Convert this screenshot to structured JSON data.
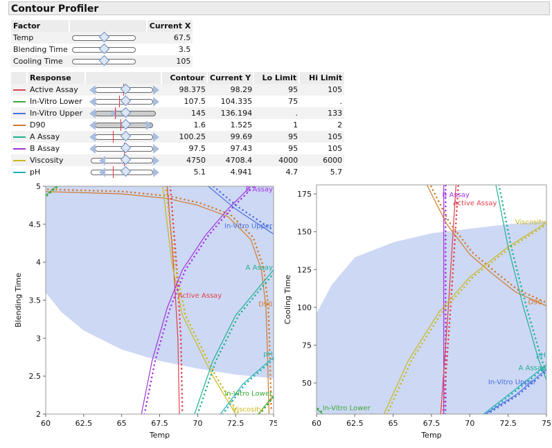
{
  "title": "Contour Profiler",
  "factors": {
    "headers": [
      "Factor",
      "Current X"
    ],
    "rows": [
      {
        "name": "Temp",
        "value": "67.5",
        "pos": 0.5
      },
      {
        "name": "Blending Time",
        "value": "3.5",
        "pos": 0.5
      },
      {
        "name": "Cooling Time",
        "value": "105",
        "pos": 0.5
      }
    ]
  },
  "responses": {
    "headers": [
      "Response",
      "Contour",
      "Current Y",
      "Lo Limit",
      "Hi Limit"
    ],
    "rows": [
      {
        "name": "Active Assay",
        "color": "#e0404a",
        "contour": "98.375",
        "current": "98.29",
        "lo": "95",
        "hi": "105"
      },
      {
        "name": "In-Vitro Lower",
        "color": "#3aaa35",
        "contour": "107.5",
        "current": "104.335",
        "lo": "75",
        "hi": "."
      },
      {
        "name": "In-Vitro Upper",
        "color": "#4a70e0",
        "contour": "145",
        "current": "136.194",
        "lo": ".",
        "hi": "133"
      },
      {
        "name": "D90",
        "color": "#d07a2a",
        "contour": "1.6",
        "current": "1.525",
        "lo": "1",
        "hi": "2"
      },
      {
        "name": "A Assay",
        "color": "#20b090",
        "contour": "100.25",
        "current": "99.69",
        "lo": "95",
        "hi": "105"
      },
      {
        "name": "B Assay",
        "color": "#a033e0",
        "contour": "97.5",
        "current": "97.43",
        "lo": "95",
        "hi": "105"
      },
      {
        "name": "Viscosity",
        "color": "#c8b81e",
        "contour": "4750",
        "current": "4708.4",
        "lo": "4000",
        "hi": "6000"
      },
      {
        "name": "pH",
        "color": "#20b0b0",
        "contour": "5.1",
        "current": "4.941",
        "lo": "4.7",
        "hi": "5.7"
      }
    ]
  },
  "chart_data": [
    {
      "type": "line",
      "xlabel": "Temp",
      "ylabel": "Blending Time",
      "xlim": [
        60,
        75
      ],
      "ylim": [
        2,
        5
      ],
      "xticks": [
        "60",
        "62.5",
        "65",
        "67.5",
        "70",
        "72.5",
        "75"
      ],
      "yticks": [
        "2",
        "2.5",
        "3",
        "3.5",
        "4",
        "4.5",
        "5"
      ],
      "shade": {
        "side": "above",
        "color": "#cdd8f4",
        "points": [
          [
            60,
            3.6
          ],
          [
            61,
            3.35
          ],
          [
            62.5,
            3.1
          ],
          [
            65,
            2.85
          ],
          [
            67.5,
            2.7
          ],
          [
            70,
            2.6
          ],
          [
            72.5,
            2.52
          ],
          [
            75,
            2.47
          ]
        ]
      },
      "series": [
        {
          "name": "D90",
          "color": "#d07a2a",
          "dx": 0.15,
          "dy": 0.03,
          "points": [
            [
              60,
              4.93
            ],
            [
              65,
              4.9
            ],
            [
              68,
              4.84
            ],
            [
              70,
              4.75
            ],
            [
              72,
              4.6
            ],
            [
              73.5,
              4.3
            ],
            [
              74.2,
              3.9
            ],
            [
              74.5,
              3.4
            ],
            [
              74.6,
              2.8
            ],
            [
              74.7,
              2.0
            ]
          ]
        },
        {
          "name": "Active Assay",
          "color": "#e0404a",
          "dx": 0.2,
          "dy": 0,
          "points": [
            [
              68.0,
              5
            ],
            [
              68.4,
              4
            ],
            [
              68.7,
              3
            ],
            [
              68.8,
              2
            ]
          ]
        },
        {
          "name": "Viscosity",
          "color": "#c8b81e",
          "dx": 0.2,
          "dy": 0,
          "points": [
            [
              67.7,
              5
            ],
            [
              68.3,
              4
            ],
            [
              69,
              3.3
            ],
            [
              70,
              2.9
            ],
            [
              71,
              2.5
            ],
            [
              72.5,
              2.0
            ]
          ]
        },
        {
          "name": "B Assay",
          "color": "#a033e0",
          "dx": 0.2,
          "dy": 0,
          "points": [
            [
              66.3,
              2
            ],
            [
              67,
              2.7
            ],
            [
              68,
              3.4
            ],
            [
              69,
              3.9
            ],
            [
              70.5,
              4.35
            ],
            [
              72,
              4.7
            ],
            [
              73.5,
              5
            ]
          ]
        },
        {
          "name": "In-Vitro Upper",
          "color": "#4a70e0",
          "dx": 0.15,
          "dy": 0.03,
          "points": [
            [
              70.7,
              5
            ],
            [
              72.5,
              4.7
            ],
            [
              75,
              4.37
            ]
          ]
        },
        {
          "name": "A Assay",
          "color": "#20b090",
          "dx": 0.2,
          "dy": 0,
          "points": [
            [
              69.8,
              2
            ],
            [
              71,
              2.7
            ],
            [
              72.5,
              3.3
            ],
            [
              75,
              3.9
            ]
          ]
        },
        {
          "name": "pH",
          "color": "#20b0b0",
          "dx": 0.15,
          "dy": 0,
          "points": [
            [
              71.5,
              2
            ],
            [
              73,
              2.4
            ],
            [
              75,
              2.75
            ]
          ]
        },
        {
          "name": "In-Vitro Lower",
          "color": "#3aaa35",
          "dx": 0.1,
          "dy": 0,
          "points": [
            [
              74,
              2
            ],
            [
              75,
              2.25
            ]
          ]
        },
        {
          "name": "In-Vitro Lower",
          "color": "#3aaa35",
          "dx": 0.1,
          "dy": 0,
          "points": [
            [
              60,
              4.88
            ],
            [
              60.7,
              5
            ]
          ]
        }
      ],
      "labels": [
        {
          "text": "B Assay",
          "color": "#a033e0",
          "x": 73.6,
          "y": 4.93
        },
        {
          "text": "In-Vitro Upper",
          "color": "#4a70e0",
          "x": 71.8,
          "y": 4.45
        },
        {
          "text": "A Assay",
          "color": "#20b090",
          "x": 73.4,
          "y": 3.9
        },
        {
          "text": "Active Assay",
          "color": "#e0404a",
          "x": 68.7,
          "y": 3.53
        },
        {
          "text": "D90",
          "color": "#d07a2a",
          "x": 74.0,
          "y": 3.42
        },
        {
          "text": "pH",
          "color": "#20b0b0",
          "x": 74.4,
          "y": 2.76
        },
        {
          "text": "In-Vitro Lower",
          "color": "#3aaa35",
          "x": 71.8,
          "y": 2.24
        },
        {
          "text": "Viscosity",
          "color": "#c8b81e",
          "x": 72.3,
          "y": 2.03
        }
      ]
    },
    {
      "type": "line",
      "xlabel": "Temp",
      "ylabel": "Cooling Time",
      "xlim": [
        60,
        75
      ],
      "ylim": [
        29.4,
        181
      ],
      "xticks": [
        "60",
        "62.5",
        "65",
        "67.5",
        "70",
        "72.5",
        "75"
      ],
      "yticks": [
        "50",
        "75",
        "100",
        "125",
        "150",
        "175"
      ],
      "shade": {
        "side": "below",
        "color": "#cdd8f4",
        "points": [
          [
            60,
            96
          ],
          [
            61,
            115
          ],
          [
            62.5,
            133
          ],
          [
            65,
            143
          ],
          [
            67.5,
            149
          ],
          [
            70,
            152
          ],
          [
            72.5,
            155
          ],
          [
            75,
            157
          ]
        ]
      },
      "series": [
        {
          "name": "B Assay",
          "color": "#a033e0",
          "dx": 0.12,
          "dy": 0,
          "points": [
            [
              68.3,
              29.4
            ],
            [
              68.3,
              181
            ]
          ]
        },
        {
          "name": "Active Assay",
          "color": "#e0404a",
          "dx": 0.15,
          "dy": 0,
          "points": [
            [
              68.1,
              29.4
            ],
            [
              68.6,
              100
            ],
            [
              69.1,
              181
            ]
          ]
        },
        {
          "name": "D90",
          "color": "#d07a2a",
          "dx": 0.15,
          "dy": 1.5,
          "points": [
            [
              67.2,
              181
            ],
            [
              68.5,
              155
            ],
            [
              70,
              135
            ],
            [
              71.5,
              122
            ],
            [
              73,
              110
            ],
            [
              75,
              101
            ]
          ]
        },
        {
          "name": "Viscosity",
          "color": "#c8b81e",
          "dx": 0.2,
          "dy": 0,
          "points": [
            [
              64.4,
              29.4
            ],
            [
              66,
              65
            ],
            [
              68,
              97
            ],
            [
              70,
              120
            ],
            [
              72.5,
              140
            ],
            [
              75,
              156
            ]
          ]
        },
        {
          "name": "A Assay",
          "color": "#20b090",
          "dx": 0.2,
          "dy": 0,
          "points": [
            [
              71.7,
              181
            ],
            [
              72.5,
              140
            ],
            [
              73.5,
              100
            ],
            [
              74.5,
              65
            ],
            [
              75,
              52
            ]
          ]
        },
        {
          "name": "pH",
          "color": "#20b0b0",
          "dx": 0.15,
          "dy": 0,
          "points": [
            [
              70.9,
              29.4
            ],
            [
              72.5,
              42
            ],
            [
              75,
              62
            ]
          ]
        },
        {
          "name": "In-Vitro Upper",
          "color": "#4a70e0",
          "dx": 0.15,
          "dy": 0,
          "points": [
            [
              71,
              29.4
            ],
            [
              73,
              42
            ],
            [
              75,
              59
            ]
          ]
        },
        {
          "name": "In-Vitro Lower",
          "color": "#3aaa35",
          "dx": 0.1,
          "dy": 0,
          "points": [
            [
              60,
              33
            ],
            [
              60.4,
              29.4
            ]
          ]
        }
      ],
      "labels": [
        {
          "text": "B Assay",
          "color": "#a033e0",
          "x": 68.2,
          "y": 173
        },
        {
          "text": "Active Assay",
          "color": "#e0404a",
          "x": 68.9,
          "y": 173
        },
        {
          "text": "Viscosity",
          "color": "#c8b81e",
          "x": 73,
          "y": 155
        },
        {
          "text": "D90",
          "color": "#d07a2a",
          "x": 73.8,
          "y": 102
        },
        {
          "text": "pH",
          "color": "#20b0b0",
          "x": 74.4,
          "y": 67
        },
        {
          "text": "A Assay",
          "color": "#20b090",
          "x": 73.3,
          "y": 64
        },
        {
          "text": "In-Vitro Upper",
          "color": "#4a70e0",
          "x": 71.2,
          "y": 60
        },
        {
          "text": "In-Vitro Lower",
          "color": "#3aaa35",
          "x": 60.4,
          "y": 32
        }
      ]
    }
  ]
}
